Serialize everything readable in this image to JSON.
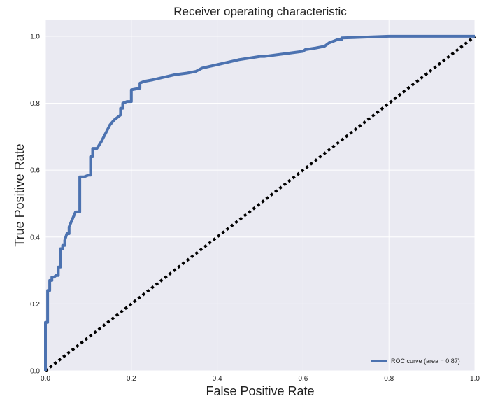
{
  "chart_data": {
    "type": "line",
    "title": "Receiver operating characteristic",
    "xlabel": "False Positive Rate",
    "ylabel": "True Positive Rate",
    "xlim": [
      0.0,
      1.0
    ],
    "ylim": [
      0.0,
      1.05
    ],
    "x_ticks": [
      0.0,
      0.2,
      0.4,
      0.6,
      0.8,
      1.0
    ],
    "y_ticks": [
      0.0,
      0.2,
      0.4,
      0.6,
      0.8,
      1.0
    ],
    "x_tick_labels": [
      "0.0",
      "0.2",
      "0.4",
      "0.6",
      "0.8",
      "1.0"
    ],
    "y_tick_labels": [
      "0.0",
      "0.2",
      "0.4",
      "0.6",
      "0.8",
      "1.0"
    ],
    "grid": true,
    "legend_position": "bottom-right",
    "series": [
      {
        "name": "ROC curve (area = 0.87)",
        "style": "solid",
        "color": "#4c72b0",
        "x": [
          0.0,
          0.0,
          0.005,
          0.005,
          0.01,
          0.01,
          0.015,
          0.015,
          0.02,
          0.025,
          0.03,
          0.03,
          0.035,
          0.035,
          0.04,
          0.04,
          0.045,
          0.045,
          0.05,
          0.055,
          0.055,
          0.06,
          0.07,
          0.08,
          0.08,
          0.09,
          0.1,
          0.105,
          0.105,
          0.11,
          0.11,
          0.12,
          0.13,
          0.14,
          0.15,
          0.16,
          0.175,
          0.175,
          0.18,
          0.18,
          0.19,
          0.2,
          0.2,
          0.22,
          0.22,
          0.23,
          0.25,
          0.3,
          0.33,
          0.35,
          0.365,
          0.4,
          0.45,
          0.5,
          0.51,
          0.6,
          0.605,
          0.63,
          0.65,
          0.655,
          0.66,
          0.67,
          0.68,
          0.69,
          0.69,
          0.8,
          0.9,
          1.0
        ],
        "y": [
          0.0,
          0.145,
          0.145,
          0.24,
          0.24,
          0.27,
          0.27,
          0.28,
          0.28,
          0.285,
          0.285,
          0.31,
          0.31,
          0.365,
          0.365,
          0.375,
          0.375,
          0.39,
          0.41,
          0.41,
          0.43,
          0.445,
          0.475,
          0.475,
          0.58,
          0.58,
          0.585,
          0.585,
          0.64,
          0.64,
          0.665,
          0.665,
          0.685,
          0.71,
          0.735,
          0.75,
          0.765,
          0.785,
          0.785,
          0.8,
          0.805,
          0.805,
          0.84,
          0.845,
          0.86,
          0.865,
          0.87,
          0.885,
          0.89,
          0.895,
          0.905,
          0.915,
          0.93,
          0.94,
          0.94,
          0.955,
          0.96,
          0.965,
          0.97,
          0.975,
          0.98,
          0.985,
          0.99,
          0.99,
          0.995,
          1.0,
          1.0,
          1.0
        ]
      },
      {
        "name": "",
        "style": "dotted",
        "color": "#000000",
        "x": [
          0.0,
          1.0
        ],
        "y": [
          0.0,
          1.0
        ]
      }
    ]
  }
}
